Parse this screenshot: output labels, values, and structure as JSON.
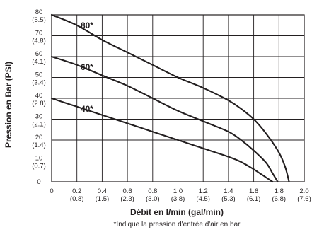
{
  "chart_data": {
    "type": "line",
    "xlabel": "Débit en l/min (gal/min)",
    "ylabel": "Pression en Bar (PSI)",
    "footnote": "*Indique la pression d'entrée d'air en bar",
    "xlim": [
      0,
      2.0
    ],
    "ylim": [
      0,
      80
    ],
    "grid": true,
    "x_ticks": [
      {
        "value": 0,
        "label": "0",
        "sub": ""
      },
      {
        "value": 0.2,
        "label": "0.2",
        "sub": "(0.8)"
      },
      {
        "value": 0.4,
        "label": "0.4",
        "sub": "(1.5)"
      },
      {
        "value": 0.6,
        "label": "0.6",
        "sub": "(2.3)"
      },
      {
        "value": 0.8,
        "label": "0.8",
        "sub": "(3.0)"
      },
      {
        "value": 1.0,
        "label": "1.0",
        "sub": "(3.8)"
      },
      {
        "value": 1.2,
        "label": "1.2",
        "sub": "(4.5)"
      },
      {
        "value": 1.4,
        "label": "1.4",
        "sub": "(5.3)"
      },
      {
        "value": 1.6,
        "label": "1.6",
        "sub": "(6.1)"
      },
      {
        "value": 1.8,
        "label": "1.8",
        "sub": "(6.8)"
      },
      {
        "value": 2.0,
        "label": "2.0",
        "sub": "(7.6)"
      }
    ],
    "y_ticks": [
      {
        "value": 0,
        "label": "0",
        "sub": ""
      },
      {
        "value": 10,
        "label": "10",
        "sub": "(0.7)"
      },
      {
        "value": 20,
        "label": "20",
        "sub": "(1.4)"
      },
      {
        "value": 30,
        "label": "30",
        "sub": "(2.1)"
      },
      {
        "value": 40,
        "label": "40",
        "sub": "(2.8)"
      },
      {
        "value": 50,
        "label": "50",
        "sub": "(3.4)"
      },
      {
        "value": 60,
        "label": "60",
        "sub": "(4.1)"
      },
      {
        "value": 70,
        "label": "70",
        "sub": "(4.8)"
      },
      {
        "value": 80,
        "label": "80",
        "sub": "(5.5)"
      }
    ],
    "series": [
      {
        "name": "80*",
        "x": [
          0,
          0.2,
          0.4,
          0.6,
          0.8,
          1.0,
          1.2,
          1.4,
          1.5,
          1.6,
          1.7,
          1.8,
          1.85,
          1.88
        ],
        "y": [
          80,
          75,
          68,
          62,
          56,
          50,
          45,
          39,
          35,
          30,
          23,
          14,
          7,
          0
        ]
      },
      {
        "name": "60*",
        "x": [
          0,
          0.2,
          0.4,
          0.6,
          0.8,
          1.0,
          1.2,
          1.4,
          1.5,
          1.6,
          1.7,
          1.75,
          1.79
        ],
        "y": [
          60,
          56,
          51,
          46,
          40,
          34,
          29,
          24,
          20,
          15,
          9,
          4,
          0
        ]
      },
      {
        "name": "40*",
        "x": [
          0,
          0.2,
          0.4,
          0.6,
          0.8,
          1.0,
          1.2,
          1.4,
          1.5,
          1.6,
          1.65,
          1.7,
          1.75
        ],
        "y": [
          40,
          36,
          32,
          28,
          24,
          20,
          16,
          12,
          9.5,
          6,
          4,
          2,
          0
        ]
      }
    ],
    "series_labels": [
      {
        "text": "80*",
        "x": 0.28,
        "y": 75
      },
      {
        "text": "60*",
        "x": 0.28,
        "y": 55
      },
      {
        "text": "40*",
        "x": 0.28,
        "y": 35
      }
    ]
  }
}
